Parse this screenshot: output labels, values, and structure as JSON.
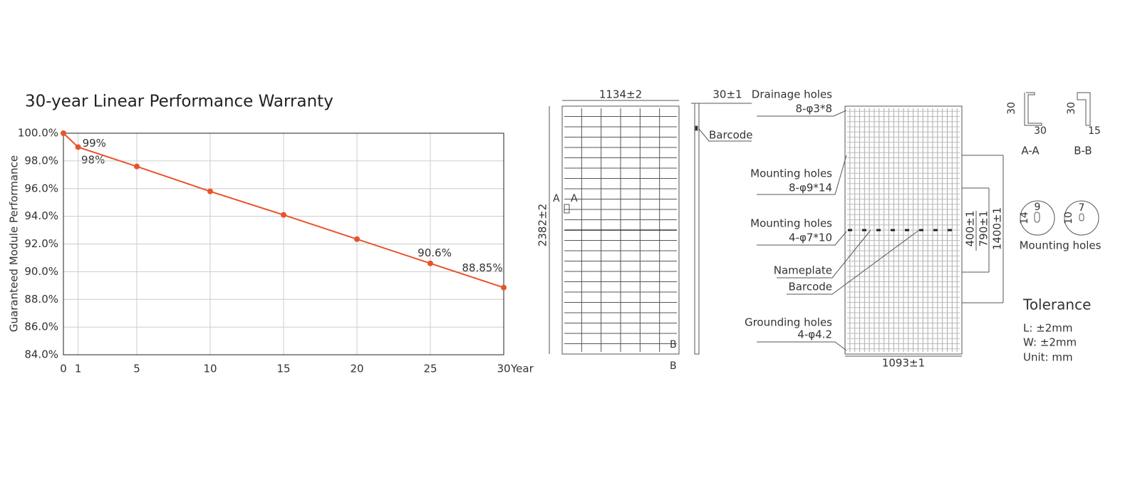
{
  "chart_data": {
    "type": "line",
    "title": "30-year Linear Performance Warranty",
    "y_label": "Guaranteed Module Performance",
    "x_label": "Year",
    "x": [
      0,
      1,
      5,
      10,
      15,
      20,
      25,
      30
    ],
    "values": [
      100,
      99,
      97.6,
      95.8,
      94.1,
      92.35,
      90.6,
      88.85
    ],
    "value_labels": [
      null,
      "99%",
      null,
      null,
      null,
      null,
      "90.6%",
      "88.85%"
    ],
    "annotations": [
      "98%"
    ],
    "color": "#e8532c",
    "xlim": [
      0,
      30
    ],
    "xticks": [
      0,
      1,
      5,
      10,
      15,
      20,
      25,
      30
    ],
    "ylim": [
      84,
      100
    ],
    "yticks": [
      {
        "value": 84,
        "label": "84.0%"
      },
      {
        "value": 86,
        "label": "86.0%"
      },
      {
        "value": 88,
        "label": "88.0%"
      },
      {
        "value": 90,
        "label": "90.0%"
      },
      {
        "value": 92,
        "label": "92.0%"
      },
      {
        "value": 94,
        "label": "94.0%"
      },
      {
        "value": 96,
        "label": "96.0%"
      },
      {
        "value": 98,
        "label": "98.0%"
      },
      {
        "value": 100,
        "label": "100.0%"
      }
    ],
    "grid": true
  },
  "diagram": {
    "labels": [
      "1134±2",
      "2382±2",
      "A",
      "A",
      "B",
      "B",
      "30±1",
      "Barcode",
      "Drainage holes",
      "8-φ3*8",
      "Mounting holes",
      "8-φ9*14",
      "Mounting holes",
      "4-φ7*10",
      "Nameplate",
      "Barcode",
      "Grounding holes",
      "4-φ4.2",
      "1093±1",
      "400±1",
      "790±1",
      "1400±1",
      "30",
      "30",
      "A-A",
      "30",
      "15",
      "B-B",
      "9",
      "14",
      "7",
      "10",
      "Mounting holes",
      "Tolerance",
      "L: ±2mm",
      "W: ±2mm",
      "Unit: mm"
    ]
  }
}
